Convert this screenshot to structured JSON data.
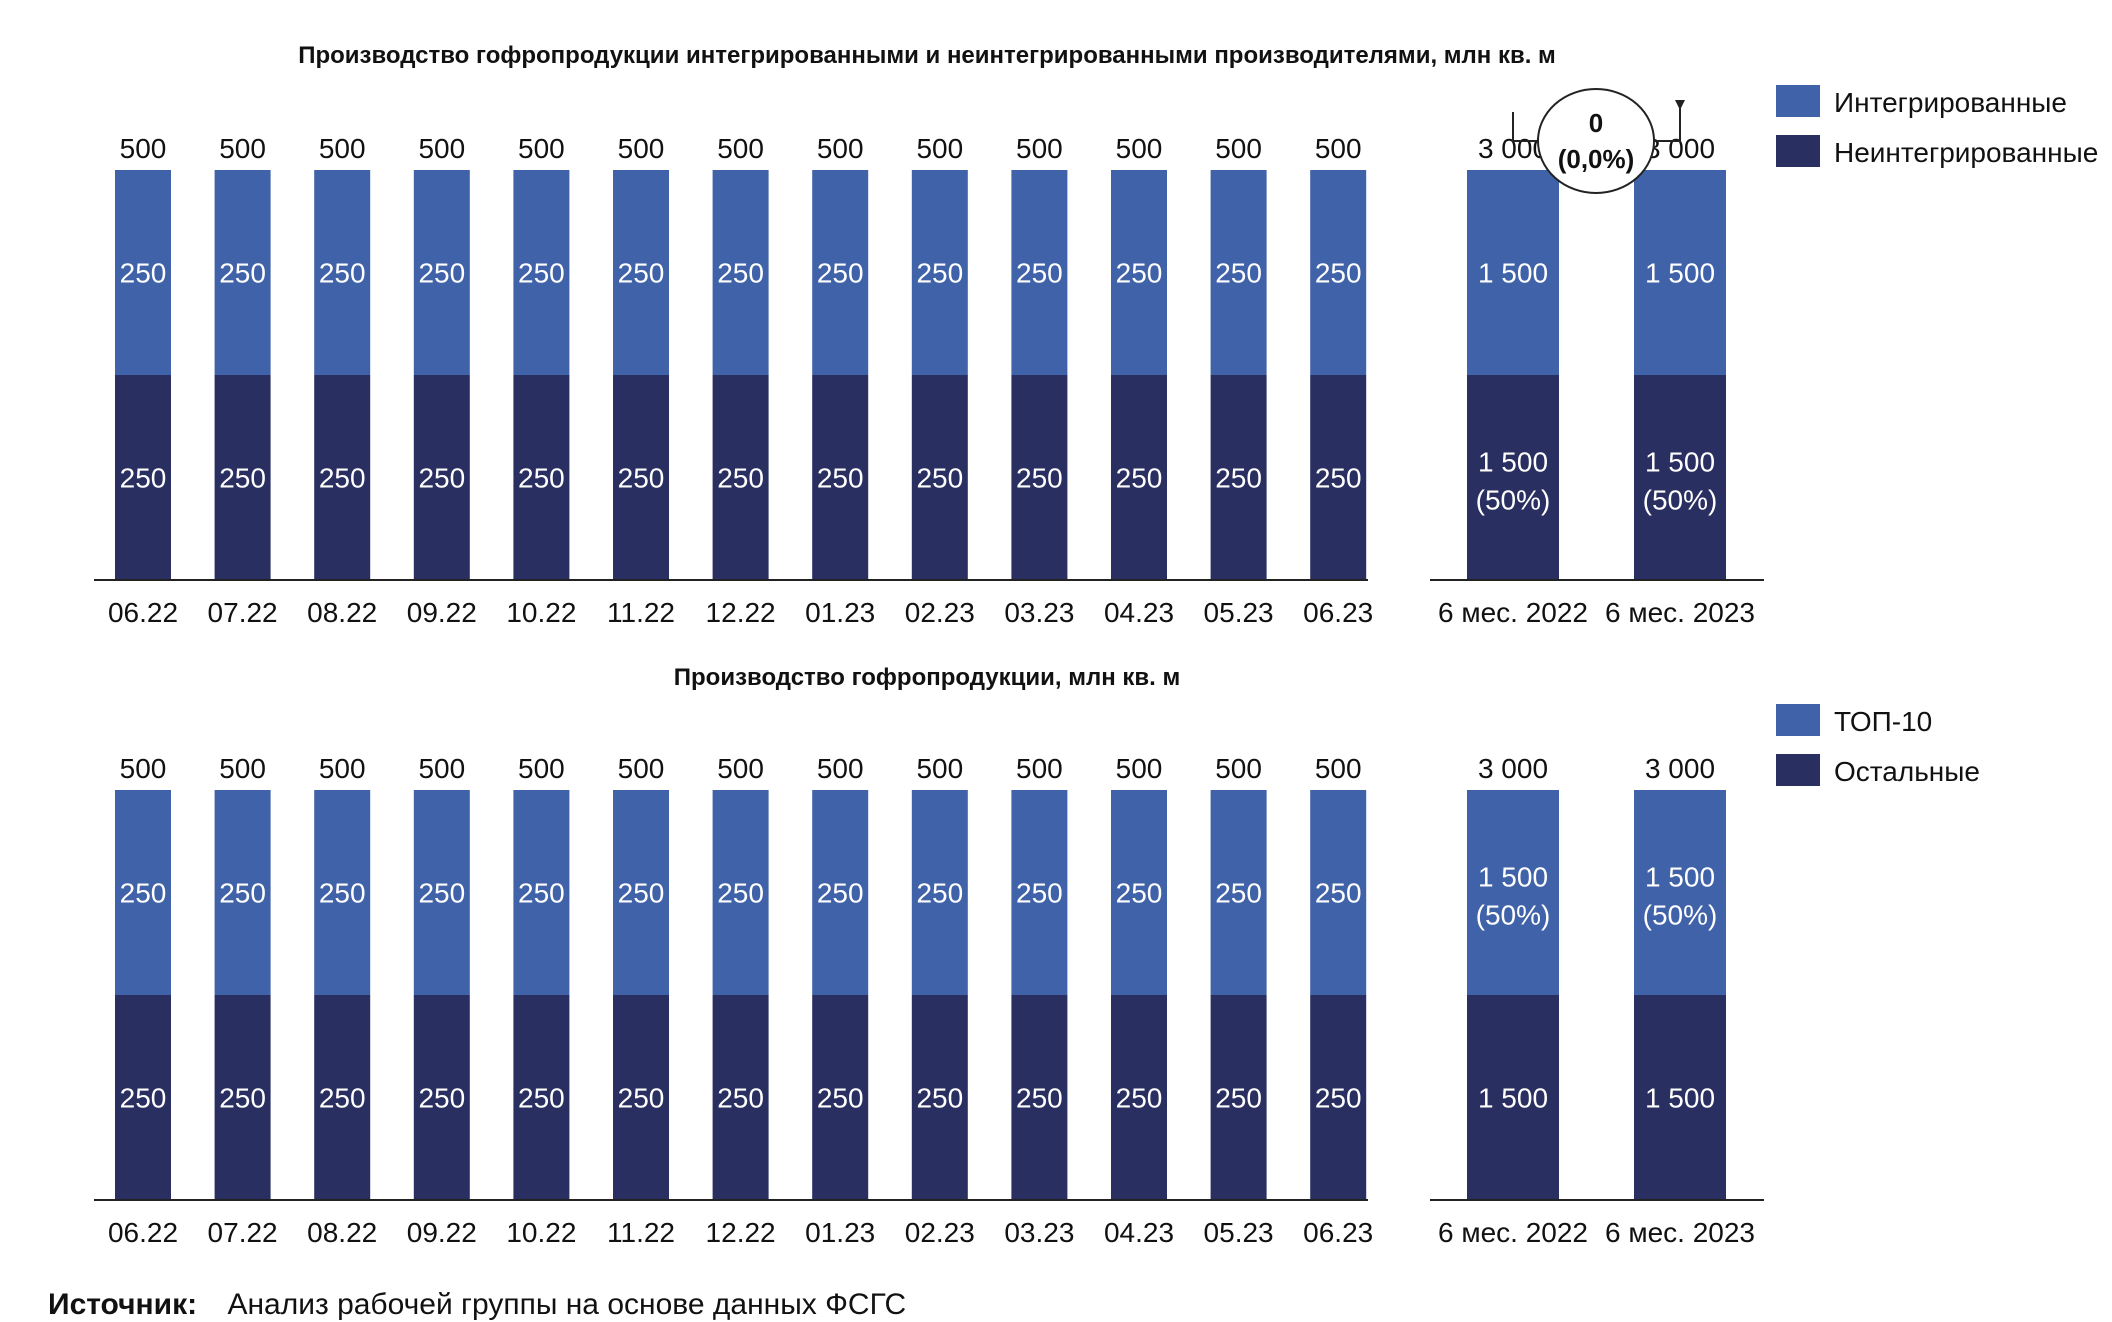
{
  "source": {
    "label": "Источник:",
    "text": "Анализ рабочей группы на основе данных ФСГС"
  },
  "colors": {
    "light": "#4062a8",
    "dark": "#2a2f61",
    "axis": "#222222"
  },
  "chart_data": [
    {
      "type": "bar",
      "stacked": true,
      "title": "Производство гофропродукции интегрированными и неинтегрированными производителями, млн кв. м",
      "legend": {
        "placement": "right",
        "entries": [
          {
            "name": "Интегрированные",
            "color": "#4062a8"
          },
          {
            "name": "Неинтегрированные",
            "color": "#2a2f61"
          }
        ]
      },
      "panels": [
        {
          "categories": [
            "06.22",
            "07.22",
            "08.22",
            "09.22",
            "10.22",
            "11.22",
            "12.22",
            "01.23",
            "02.23",
            "03.23",
            "04.23",
            "05.23",
            "06.23"
          ],
          "series": [
            {
              "name": "Неинтегрированные",
              "values": [
                250,
                250,
                250,
                250,
                250,
                250,
                250,
                250,
                250,
                250,
                250,
                250,
                250
              ],
              "labels": [
                "250",
                "250",
                "250",
                "250",
                "250",
                "250",
                "250",
                "250",
                "250",
                "250",
                "250",
                "250",
                "250"
              ]
            },
            {
              "name": "Интегрированные",
              "values": [
                250,
                250,
                250,
                250,
                250,
                250,
                250,
                250,
                250,
                250,
                250,
                250,
                250
              ],
              "labels": [
                "250",
                "250",
                "250",
                "250",
                "250",
                "250",
                "250",
                "250",
                "250",
                "250",
                "250",
                "250",
                "250"
              ]
            }
          ],
          "totals": [
            500,
            500,
            500,
            500,
            500,
            500,
            500,
            500,
            500,
            500,
            500,
            500,
            500
          ],
          "total_labels": [
            "500",
            "500",
            "500",
            "500",
            "500",
            "500",
            "500",
            "500",
            "500",
            "500",
            "500",
            "500",
            "500"
          ],
          "ylim": [
            0,
            500
          ]
        },
        {
          "categories": [
            "6 мес. 2022",
            "6 мес. 2023"
          ],
          "series": [
            {
              "name": "Неинтегрированные",
              "values": [
                1500,
                1500
              ],
              "labels": [
                "1 500",
                "1 500"
              ],
              "share_labels": [
                "(50%)",
                "(50%)"
              ]
            },
            {
              "name": "Интегрированные",
              "values": [
                1500,
                1500
              ],
              "labels": [
                "1 500",
                "1 500"
              ]
            }
          ],
          "totals": [
            3000,
            3000
          ],
          "total_labels": [
            "3 000",
            "3 000"
          ],
          "ylim": [
            0,
            3000
          ],
          "change": {
            "value": "0",
            "percent": "(0,0%)"
          }
        }
      ]
    },
    {
      "type": "bar",
      "stacked": true,
      "title": "Производство гофропродукции, млн кв. м",
      "legend": {
        "placement": "right",
        "entries": [
          {
            "name": "ТОП-10",
            "color": "#4062a8"
          },
          {
            "name": "Остальные",
            "color": "#2a2f61"
          }
        ]
      },
      "panels": [
        {
          "categories": [
            "06.22",
            "07.22",
            "08.22",
            "09.22",
            "10.22",
            "11.22",
            "12.22",
            "01.23",
            "02.23",
            "03.23",
            "04.23",
            "05.23",
            "06.23"
          ],
          "series": [
            {
              "name": "Остальные",
              "values": [
                250,
                250,
                250,
                250,
                250,
                250,
                250,
                250,
                250,
                250,
                250,
                250,
                250
              ],
              "labels": [
                "250",
                "250",
                "250",
                "250",
                "250",
                "250",
                "250",
                "250",
                "250",
                "250",
                "250",
                "250",
                "250"
              ]
            },
            {
              "name": "ТОП-10",
              "values": [
                250,
                250,
                250,
                250,
                250,
                250,
                250,
                250,
                250,
                250,
                250,
                250,
                250
              ],
              "labels": [
                "250",
                "250",
                "250",
                "250",
                "250",
                "250",
                "250",
                "250",
                "250",
                "250",
                "250",
                "250",
                "250"
              ]
            }
          ],
          "totals": [
            500,
            500,
            500,
            500,
            500,
            500,
            500,
            500,
            500,
            500,
            500,
            500,
            500
          ],
          "total_labels": [
            "500",
            "500",
            "500",
            "500",
            "500",
            "500",
            "500",
            "500",
            "500",
            "500",
            "500",
            "500",
            "500"
          ],
          "ylim": [
            0,
            500
          ]
        },
        {
          "categories": [
            "6 мес. 2022",
            "6 мес. 2023"
          ],
          "series": [
            {
              "name": "Остальные",
              "values": [
                1500,
                1500
              ],
              "labels": [
                "1 500",
                "1 500"
              ]
            },
            {
              "name": "ТОП-10",
              "values": [
                1500,
                1500
              ],
              "labels": [
                "1 500",
                "1 500"
              ],
              "share_labels": [
                "(50%)",
                "(50%)"
              ]
            }
          ],
          "totals": [
            3000,
            3000
          ],
          "total_labels": [
            "3 000",
            "3 000"
          ],
          "ylim": [
            0,
            3000
          ]
        }
      ]
    }
  ]
}
